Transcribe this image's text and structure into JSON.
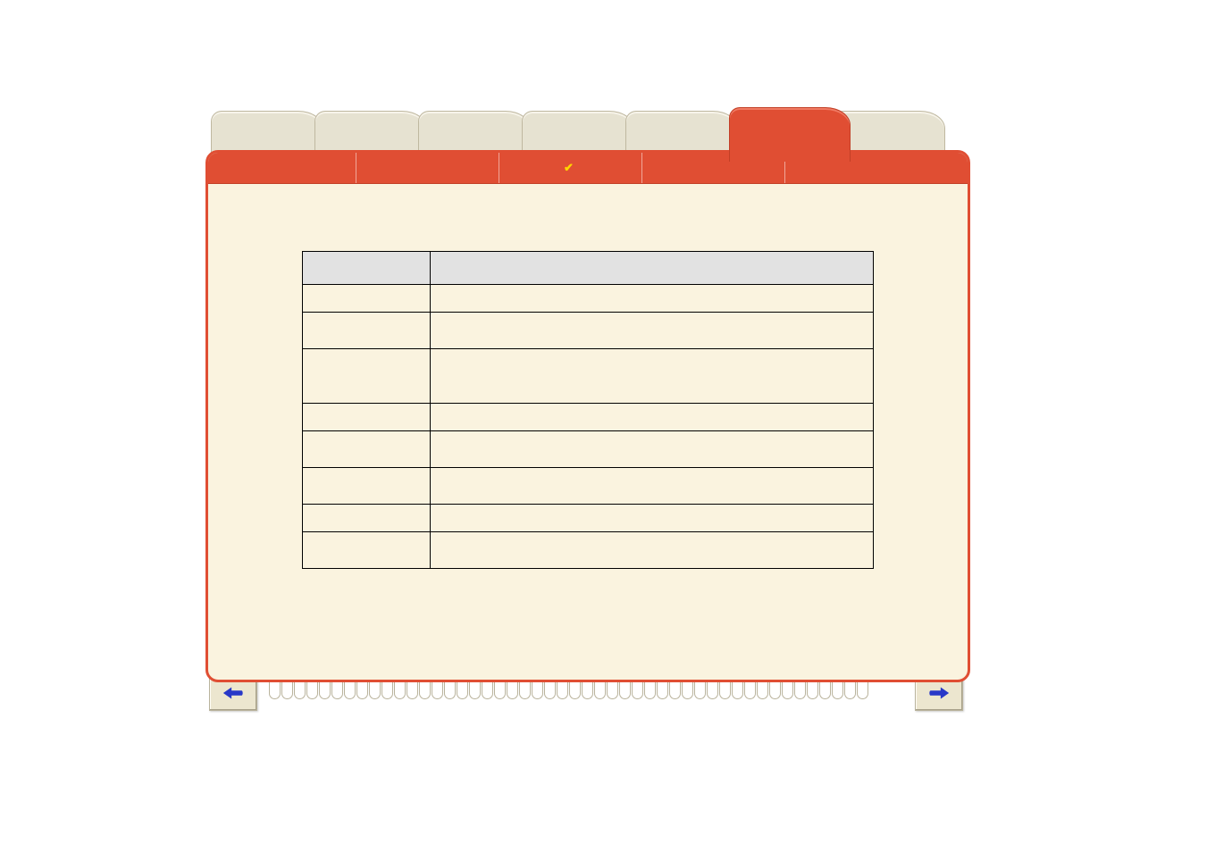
{
  "colors": {
    "accent": "#e04e33",
    "folder_bg": "#faf3df",
    "inactive_tab": "#e6e2d1",
    "button_bg": "#ece6cf",
    "icon": "#2838c8",
    "table_header_bg": "#e2e2e2"
  },
  "tabs": {
    "count": 7,
    "active_index": 5,
    "labels": [
      "",
      "",
      "",
      "",
      "",
      "",
      ""
    ]
  },
  "menubar": {
    "items": [
      {
        "label": "",
        "active": false
      },
      {
        "label": "",
        "active": false
      },
      {
        "label": "",
        "active": true
      },
      {
        "label": "",
        "active": false
      },
      {
        "label": "",
        "active": false
      }
    ]
  },
  "table": {
    "header": {
      "col1": "",
      "col2": ""
    },
    "rows": [
      {
        "code": "",
        "desc": "",
        "size": "tight"
      },
      {
        "code": "",
        "desc": "",
        "size": "med"
      },
      {
        "code": "",
        "desc": "",
        "size": "tall"
      },
      {
        "code": "",
        "desc": "",
        "size": "tight"
      },
      {
        "code": "",
        "desc": "",
        "size": "med"
      },
      {
        "code": "",
        "desc": "",
        "size": "med"
      },
      {
        "code": "",
        "desc": "",
        "size": "tight"
      },
      {
        "code": "",
        "desc": "",
        "size": "med"
      }
    ]
  },
  "nav": {
    "home": "home-icon",
    "back": "undo-icon",
    "prev": "hand-left-icon",
    "exit": "door-icon",
    "print": "printer-icon",
    "next": "hand-right-icon"
  },
  "spiral_rings": 48
}
